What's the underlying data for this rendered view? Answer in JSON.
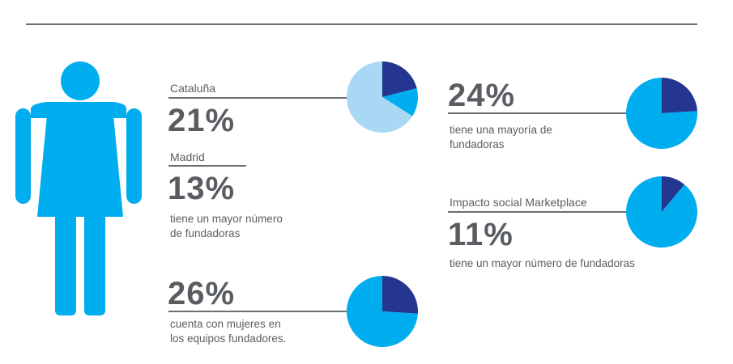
{
  "colors": {
    "figure": "#00adef",
    "dark": "#24368f",
    "light": "#a9d8f5",
    "mid": "#00adef",
    "text": "#595d61",
    "rule": "#6b6f73"
  },
  "icon": "woman-figure-icon",
  "chart_data": [
    {
      "type": "pie",
      "id": "cataluna-madrid",
      "slices": [
        {
          "label": "Cataluña",
          "value": 21,
          "color": "#24368f"
        },
        {
          "label": "Madrid",
          "value": 13,
          "color": "#00adef"
        },
        {
          "label": "",
          "value": 66,
          "color": "#a9d8f5"
        }
      ]
    },
    {
      "type": "pie",
      "id": "equipos",
      "slices": [
        {
          "label": "",
          "value": 26,
          "color": "#24368f"
        },
        {
          "label": "",
          "value": 74,
          "color": "#00adef"
        }
      ]
    },
    {
      "type": "pie",
      "id": "mayoria",
      "slices": [
        {
          "label": "",
          "value": 24,
          "color": "#24368f"
        },
        {
          "label": "",
          "value": 76,
          "color": "#00adef"
        }
      ]
    },
    {
      "type": "pie",
      "id": "impacto",
      "slices": [
        {
          "label": "",
          "value": 11,
          "color": "#24368f"
        },
        {
          "label": "",
          "value": 89,
          "color": "#00adef"
        }
      ]
    }
  ],
  "stats": {
    "cataluna": {
      "label": "Cataluña",
      "value": "21%"
    },
    "madrid": {
      "label": "Madrid",
      "value": "13%",
      "desc": [
        "tiene un mayor número",
        "de fundadoras"
      ]
    },
    "equipos": {
      "value": "26%",
      "desc": [
        "cuenta con mujeres en",
        "los equipos fundadores."
      ]
    },
    "mayoria": {
      "value": "24%",
      "desc": [
        "tiene una mayoría de",
        "fundadoras"
      ]
    },
    "impacto": {
      "label": "Impacto social Marketplace",
      "value": "11%",
      "desc": [
        "tiene un mayor número de fundadoras"
      ]
    }
  }
}
